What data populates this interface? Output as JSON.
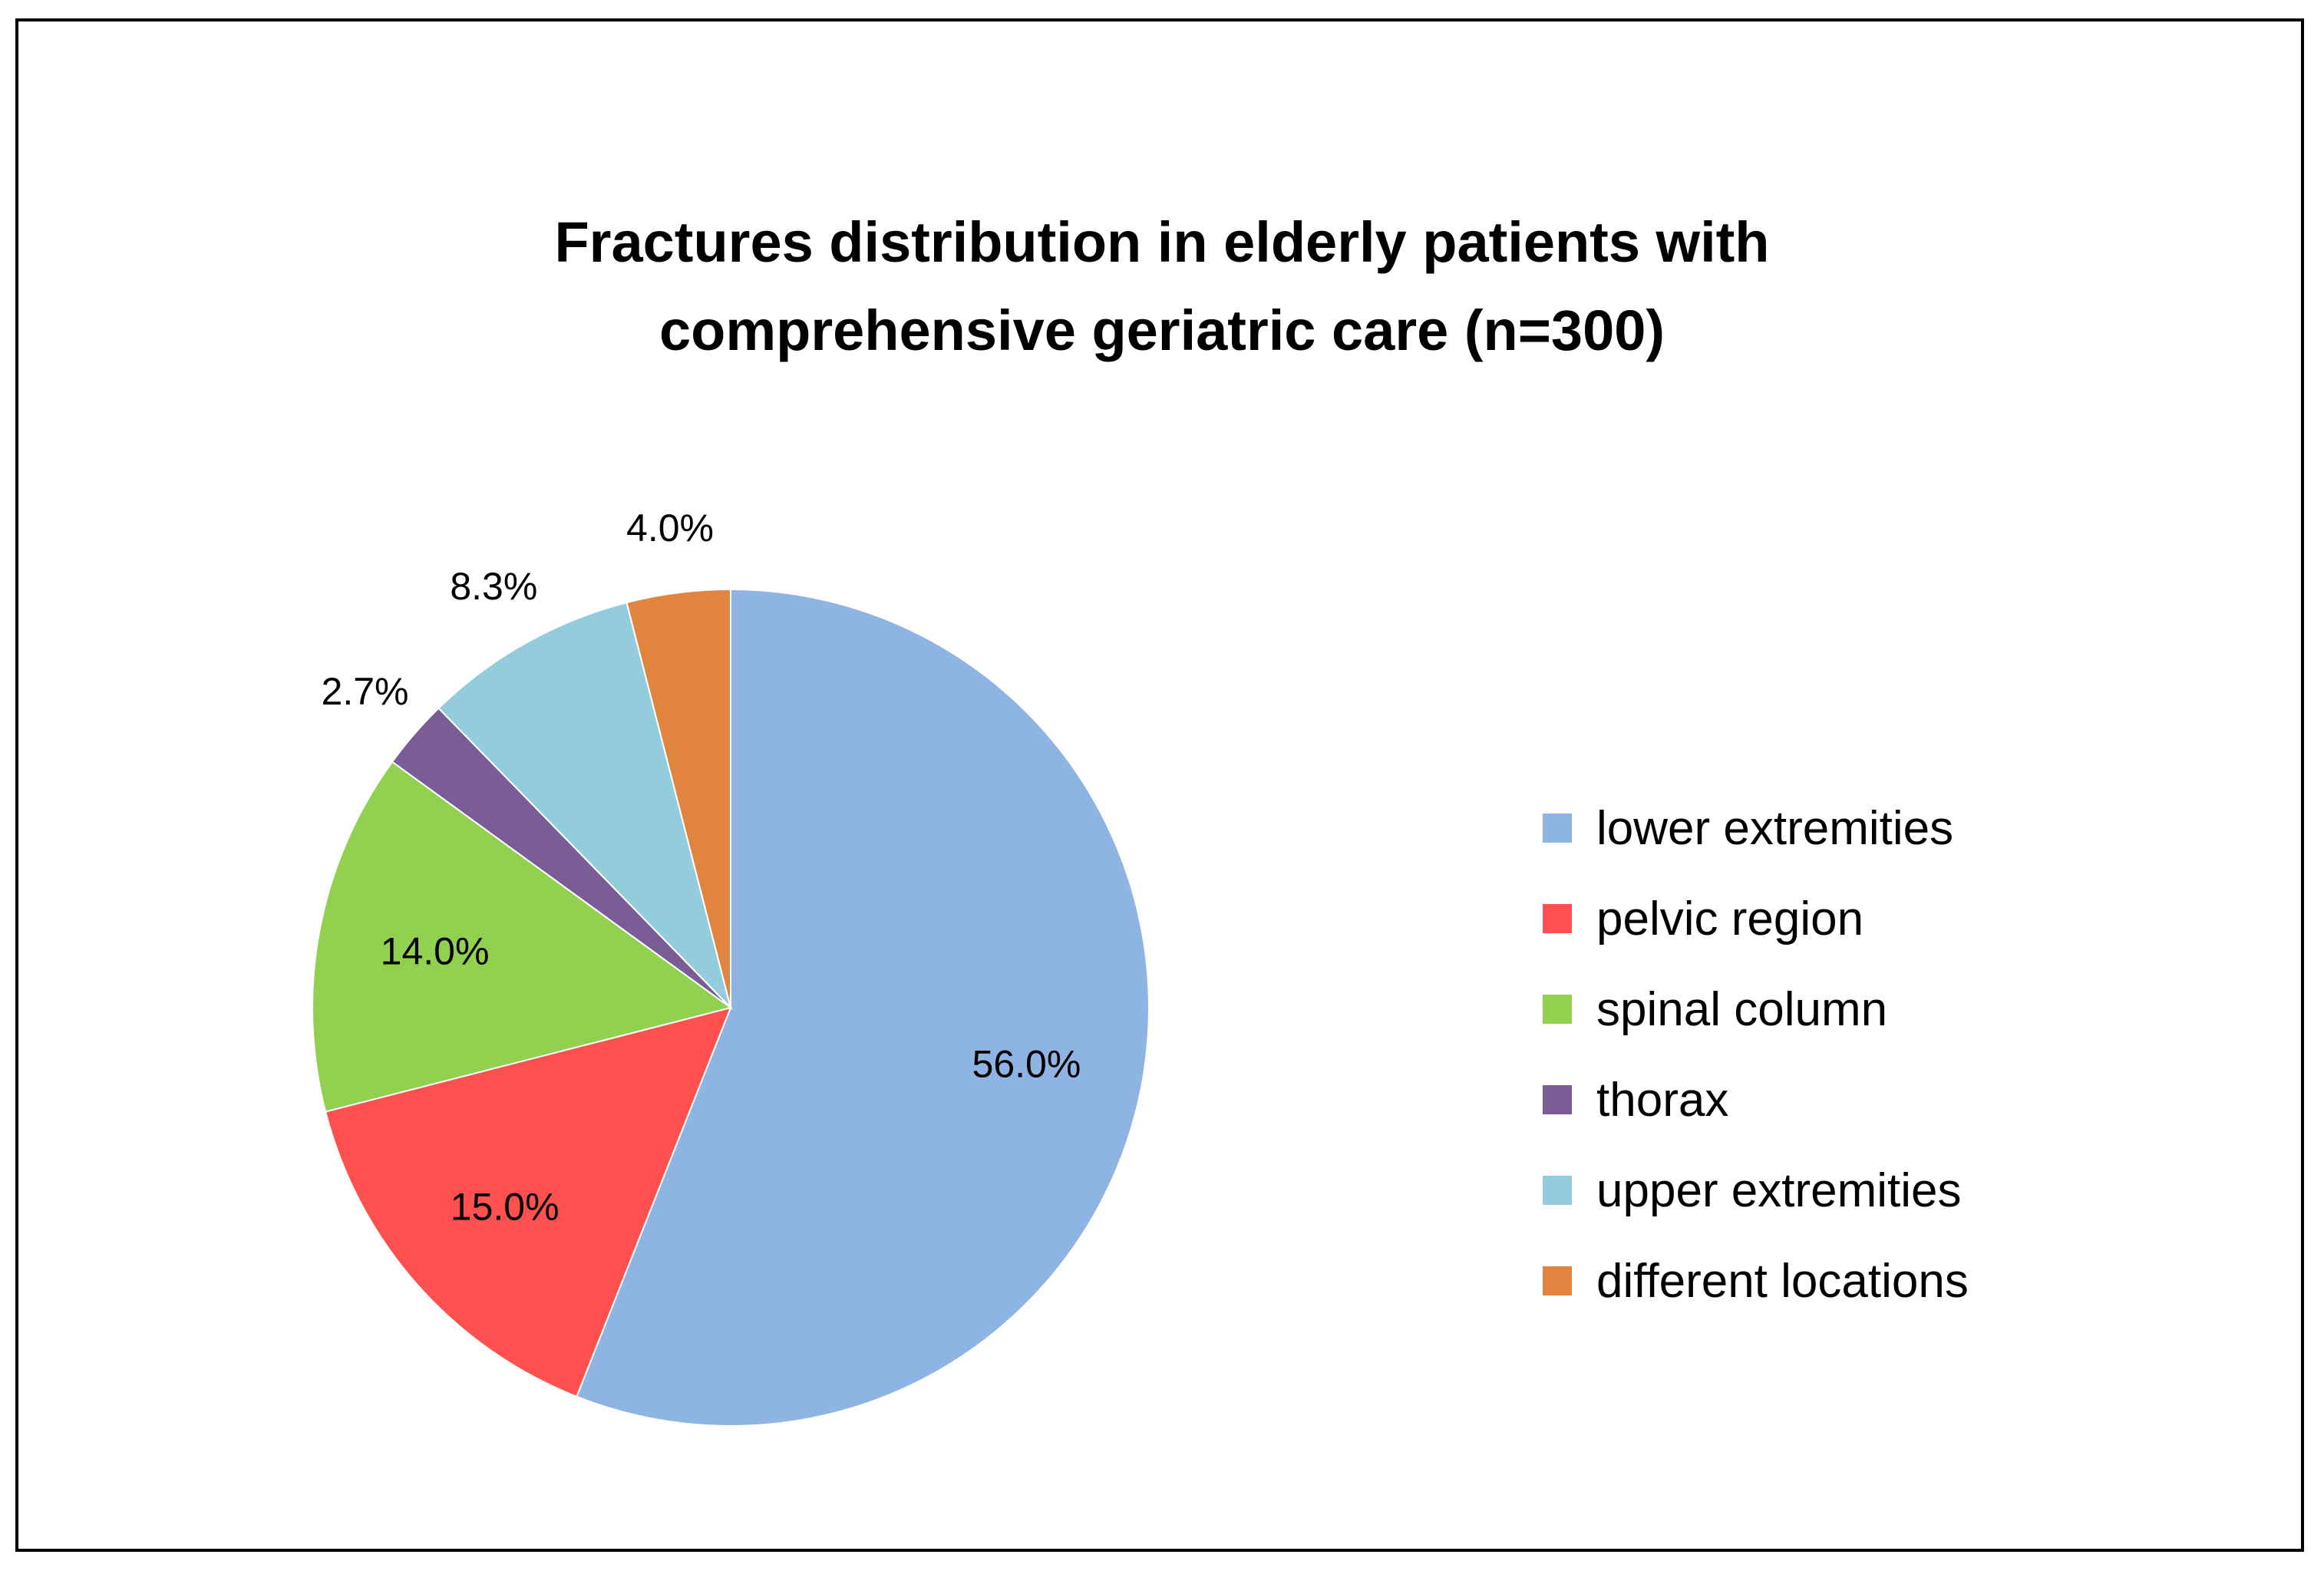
{
  "chart_data": {
    "type": "pie",
    "title": "Fractures distribution in elderly patients with comprehensive geriatric care (n=300)",
    "title_lines": [
      "Fractures distribution in elderly patients with",
      "comprehensive geriatric care (n=300)"
    ],
    "categories": [
      "lower extremities",
      "pelvic region",
      "spinal column",
      "thorax",
      "upper extremities",
      "different locations"
    ],
    "values": [
      56.0,
      15.0,
      14.0,
      2.7,
      8.3,
      4.0
    ],
    "labels": [
      "56.0%",
      "15.0%",
      "14.0%",
      "2.7%",
      "8.3%",
      "4.0%"
    ],
    "colors": [
      "#8EB4E3",
      "#FF5050",
      "#92D050",
      "#7A5C96",
      "#93CDDD",
      "#E0843E"
    ],
    "label_placement": [
      "inside",
      "inside",
      "inside",
      "outside",
      "outside",
      "outside"
    ],
    "legend_position": "right",
    "start": "12 o'clock",
    "direction": "clockwise"
  }
}
